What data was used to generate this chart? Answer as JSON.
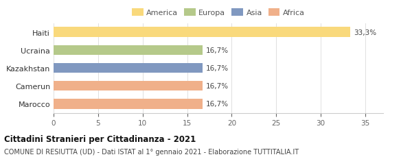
{
  "categories": [
    "Haiti",
    "Ucraina",
    "Kazakhstan",
    "Camerun",
    "Marocco"
  ],
  "values": [
    33.3,
    16.7,
    16.7,
    16.7,
    16.7
  ],
  "labels": [
    "33,3%",
    "16,7%",
    "16,7%",
    "16,7%",
    "16,7%"
  ],
  "bar_colors": [
    "#f9d97c",
    "#b5c98a",
    "#8098c0",
    "#f0b08a",
    "#f0b08a"
  ],
  "legend_items": [
    {
      "label": "America",
      "color": "#f9d97c"
    },
    {
      "label": "Europa",
      "color": "#b5c98a"
    },
    {
      "label": "Asia",
      "color": "#8098c0"
    },
    {
      "label": "Africa",
      "color": "#f0b08a"
    }
  ],
  "xlim": [
    0,
    37
  ],
  "xticks": [
    0,
    5,
    10,
    15,
    20,
    25,
    30,
    35
  ],
  "title": "Cittadini Stranieri per Cittadinanza - 2021",
  "subtitle": "COMUNE DI RESIUTTA (UD) - Dati ISTAT al 1° gennaio 2021 - Elaborazione TUTTITALIA.IT",
  "background_color": "#ffffff",
  "bar_height": 0.55
}
